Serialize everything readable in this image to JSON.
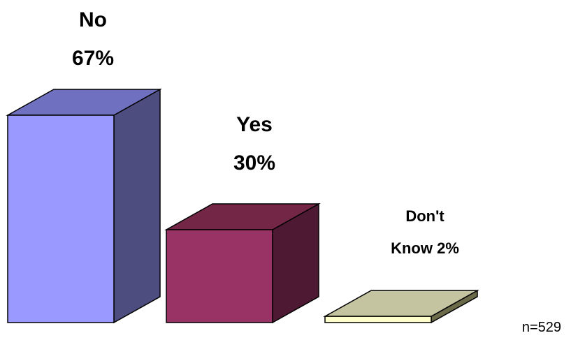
{
  "chart_data": {
    "type": "bar",
    "style": "3d-column",
    "categories": [
      "No",
      "Yes",
      "Don't Know"
    ],
    "values": [
      67,
      30,
      2
    ],
    "units": "%",
    "data_labels": [
      [
        "No",
        "67%"
      ],
      [
        "Yes",
        "30%"
      ],
      [
        "Don't",
        "Know 2%"
      ]
    ],
    "colors": {
      "front": [
        "#9999ff",
        "#993366",
        "#ffffcc"
      ],
      "side": [
        "#4d4d80",
        "#4d1933",
        "#6b6b4a"
      ],
      "top": [
        "#7070c0",
        "#732646",
        "#c4c4a0"
      ]
    },
    "grid": false,
    "legend": "none"
  },
  "footnote": "n=529"
}
